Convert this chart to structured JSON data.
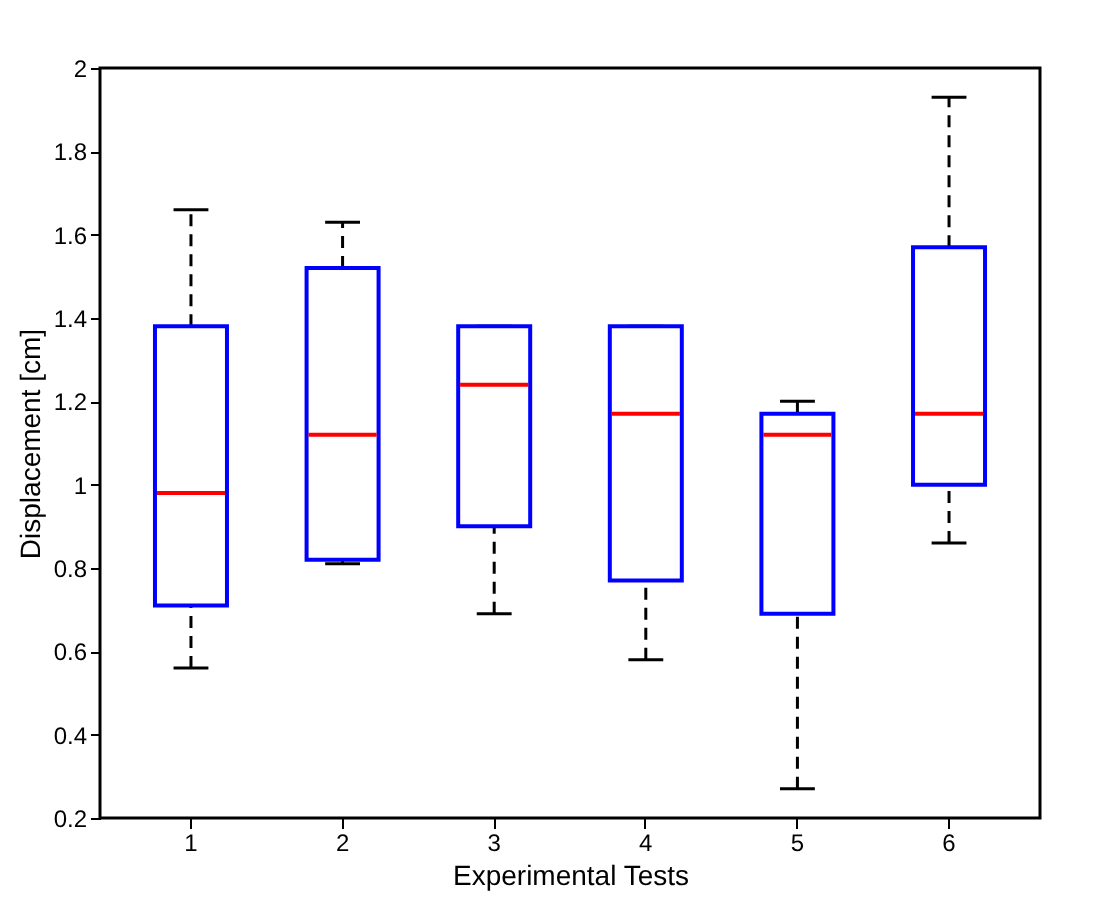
{
  "chart_data": {
    "type": "box",
    "xlabel": "Experimental Tests",
    "ylabel": "Displacement [cm]",
    "categories": [
      "1",
      "2",
      "3",
      "4",
      "5",
      "6"
    ],
    "boxes": [
      {
        "low": 0.56,
        "q1": 0.71,
        "median": 0.98,
        "q3": 1.38,
        "high": 1.66
      },
      {
        "low": 0.81,
        "q1": 0.82,
        "median": 1.12,
        "q3": 1.52,
        "high": 1.63
      },
      {
        "low": 0.69,
        "q1": 0.9,
        "median": 1.24,
        "q3": 1.38,
        "high": 1.38
      },
      {
        "low": 0.58,
        "q1": 0.77,
        "median": 1.17,
        "q3": 1.38,
        "high": 1.38
      },
      {
        "low": 0.27,
        "q1": 0.69,
        "median": 1.12,
        "q3": 1.17,
        "high": 1.2
      },
      {
        "low": 0.86,
        "q1": 1.0,
        "median": 1.17,
        "q3": 1.57,
        "high": 1.93
      }
    ],
    "color": "#0000ff",
    "line_style": "dashed",
    "ylim": [
      0.2,
      2
    ],
    "yticks": [
      0.2,
      0.4,
      0.6,
      0.8,
      1,
      1.2,
      1.4,
      1.6,
      1.8,
      2
    ],
    "grid": false
  }
}
